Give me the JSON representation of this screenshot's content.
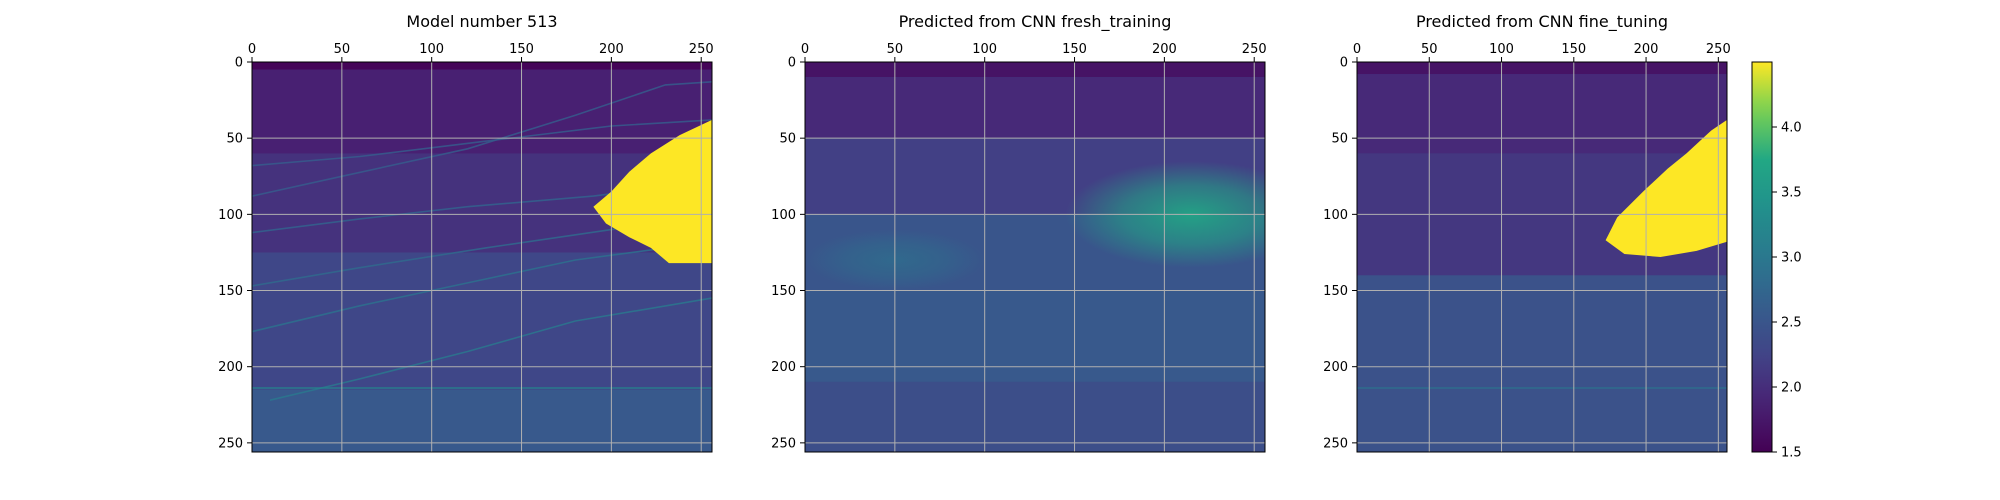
{
  "chart_data": [
    {
      "type": "heatmap",
      "title": "Model number 513",
      "xticks": [
        "0",
        "50",
        "100",
        "150",
        "200",
        "250"
      ],
      "yticks": [
        "0",
        "50",
        "100",
        "150",
        "200",
        "250"
      ],
      "xlim": [
        0,
        256
      ],
      "ylim": [
        256,
        0
      ],
      "grid": true,
      "x_axis_position": "top",
      "background_value": 1.9,
      "layers": [
        {
          "y_from": 0,
          "y_to": 5,
          "value": 1.55
        },
        {
          "y_from": 5,
          "y_to": 60,
          "value": 1.85
        },
        {
          "y_from": 60,
          "y_to": 125,
          "value": 2.05
        },
        {
          "y_from": 125,
          "y_to": 215,
          "value": 2.3
        },
        {
          "y_from": 215,
          "y_to": 256,
          "value": 2.55
        }
      ],
      "interfaces": [
        {
          "points": [
            [
              0,
              68
            ],
            [
              60,
              62
            ],
            [
              130,
              52
            ],
            [
              200,
              42
            ],
            [
              256,
              38
            ]
          ],
          "value": 2.6
        },
        {
          "points": [
            [
              0,
              88
            ],
            [
              50,
              75
            ],
            [
              120,
              57
            ],
            [
              180,
              35
            ],
            [
              230,
              15
            ],
            [
              256,
              13
            ]
          ],
          "value": 2.6
        },
        {
          "points": [
            [
              0,
              112
            ],
            [
              60,
              103
            ],
            [
              120,
              95
            ],
            [
              190,
              88
            ],
            [
              256,
              78
            ]
          ],
          "value": 2.7
        },
        {
          "points": [
            [
              0,
              147
            ],
            [
              60,
              135
            ],
            [
              130,
              122
            ],
            [
              200,
              110
            ],
            [
              256,
              100
            ]
          ],
          "value": 2.8
        },
        {
          "points": [
            [
              0,
              177
            ],
            [
              60,
              160
            ],
            [
              120,
              145
            ],
            [
              180,
              130
            ],
            [
              256,
              118
            ]
          ],
          "value": 2.9
        },
        {
          "points": [
            [
              10,
              222
            ],
            [
              60,
              208
            ],
            [
              120,
              190
            ],
            [
              180,
              170
            ],
            [
              256,
              155
            ]
          ],
          "value": 3.0
        },
        {
          "points": [
            [
              0,
              214
            ],
            [
              256,
              214
            ]
          ],
          "value": 3.2
        }
      ],
      "salt_body": {
        "value": 4.5,
        "outline": [
          [
            256,
            38
          ],
          [
            238,
            48
          ],
          [
            222,
            60
          ],
          [
            210,
            72
          ],
          [
            200,
            85
          ],
          [
            190,
            95
          ],
          [
            197,
            106
          ],
          [
            210,
            115
          ],
          [
            222,
            122
          ],
          [
            232,
            132
          ],
          [
            256,
            132
          ]
        ]
      }
    },
    {
      "type": "heatmap",
      "title": "Predicted from CNN fresh_training",
      "xticks": [
        "0",
        "50",
        "100",
        "150",
        "200",
        "250"
      ],
      "yticks": [
        "0",
        "50",
        "100",
        "150",
        "200",
        "250"
      ],
      "xlim": [
        0,
        256
      ],
      "ylim": [
        256,
        0
      ],
      "grid": true,
      "x_axis_position": "top",
      "background_value": 2.3,
      "layers": [
        {
          "y_from": 0,
          "y_to": 10,
          "value": 1.7
        },
        {
          "y_from": 10,
          "y_to": 50,
          "value": 1.95
        },
        {
          "y_from": 50,
          "y_to": 100,
          "value": 2.2
        },
        {
          "y_from": 100,
          "y_to": 150,
          "value": 2.5
        },
        {
          "y_from": 150,
          "y_to": 210,
          "value": 2.55
        },
        {
          "y_from": 210,
          "y_to": 256,
          "value": 2.4
        }
      ],
      "blobs": [
        {
          "center": [
            215,
            100
          ],
          "radius": [
            70,
            35
          ],
          "value": 3.7
        },
        {
          "center": [
            50,
            130
          ],
          "radius": [
            50,
            20
          ],
          "value": 2.8
        }
      ]
    },
    {
      "type": "heatmap",
      "title": "Predicted from CNN fine_tuning",
      "xticks": [
        "0",
        "50",
        "100",
        "150",
        "200",
        "250"
      ],
      "yticks": [
        "0",
        "50",
        "100",
        "150",
        "200",
        "250"
      ],
      "xlim": [
        0,
        256
      ],
      "ylim": [
        256,
        0
      ],
      "grid": true,
      "x_axis_position": "top",
      "background_value": 2.1,
      "layers": [
        {
          "y_from": 0,
          "y_to": 8,
          "value": 1.7
        },
        {
          "y_from": 8,
          "y_to": 60,
          "value": 1.95
        },
        {
          "y_from": 60,
          "y_to": 140,
          "value": 2.1
        },
        {
          "y_from": 140,
          "y_to": 256,
          "value": 2.45
        }
      ],
      "interfaces": [
        {
          "points": [
            [
              0,
              214
            ],
            [
              256,
              214
            ]
          ],
          "value": 2.9
        }
      ],
      "salt_body": {
        "value": 4.5,
        "outline": [
          [
            256,
            38
          ],
          [
            245,
            45
          ],
          [
            228,
            60
          ],
          [
            215,
            70
          ],
          [
            198,
            85
          ],
          [
            180,
            102
          ],
          [
            172,
            117
          ],
          [
            185,
            126
          ],
          [
            210,
            128
          ],
          [
            235,
            124
          ],
          [
            256,
            118
          ]
        ]
      }
    }
  ],
  "colorbar": {
    "cmap": "viridis",
    "range": [
      1.5,
      4.5
    ],
    "ticks": [
      "1.5",
      "2.0",
      "2.5",
      "3.0",
      "3.5",
      "4.0"
    ],
    "position": "right"
  }
}
